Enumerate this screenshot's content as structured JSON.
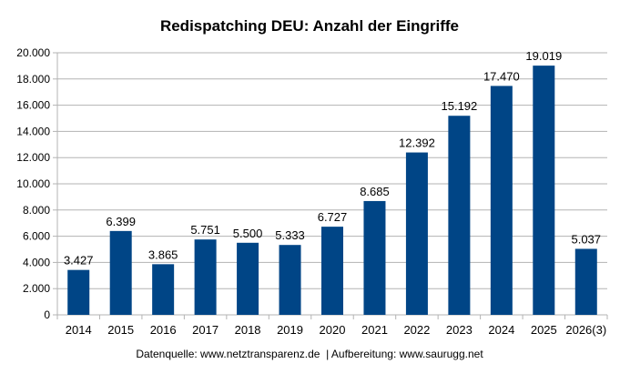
{
  "chart_data": {
    "type": "bar",
    "title": "Redispatching DEU: Anzahl der Eingriffe",
    "categories": [
      "2014",
      "2015",
      "2016",
      "2017",
      "2018",
      "2019",
      "2020",
      "2021",
      "2022",
      "2023",
      "2024",
      "2025",
      "2026(3)"
    ],
    "values": [
      3427,
      6399,
      3865,
      5751,
      5500,
      5333,
      6727,
      8685,
      12392,
      15192,
      17470,
      19019,
      5037
    ],
    "data_labels": [
      "3.427",
      "6.399",
      "3.865",
      "5.751",
      "5.500",
      "5.333",
      "6.727",
      "8.685",
      "12.392",
      "15.192",
      "17.470",
      "19.019",
      "5.037"
    ],
    "ylim": [
      0,
      20000
    ],
    "yticks": [
      0,
      2000,
      4000,
      6000,
      8000,
      10000,
      12000,
      14000,
      16000,
      18000,
      20000
    ],
    "ytick_labels": [
      "0",
      "2.000",
      "4.000",
      "6.000",
      "8.000",
      "10.000",
      "12.000",
      "14.000",
      "16.000",
      "18.000",
      "20.000"
    ],
    "xlabel": "",
    "ylabel": "",
    "grid": true,
    "bar_color": "#004586",
    "source_note": "Datenquelle: www.netztransparenz.de  | Aufbereitung: www.saurugg.net"
  }
}
